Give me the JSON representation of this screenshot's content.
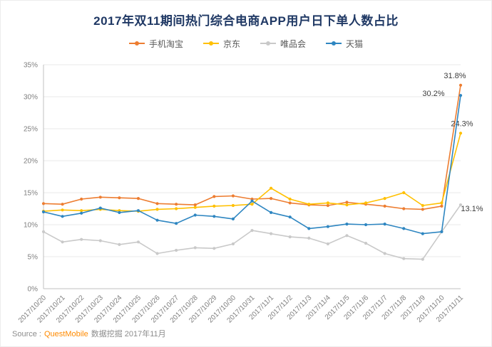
{
  "title": "2017年双11期间热门综合电商APP用户日下单人数占比",
  "source": {
    "prefix": "Source :",
    "brand": "QuestMobile",
    "suffix": "数据挖掘 2017年11月"
  },
  "colors": {
    "title": "#1F3864",
    "grid": "#E8E8E8",
    "axis": "#C0C0C0",
    "tick_text": "#7F7F7F",
    "end_label_text": "#3D3D3D",
    "source_brand": "#FF8A00"
  },
  "chart_data": {
    "type": "line",
    "title": "2017年双11期间热门综合电商APP用户日下单人数占比",
    "xlabel": "",
    "ylabel": "",
    "ylim": [
      0,
      35
    ],
    "yticks": [
      "0%",
      "5%",
      "10%",
      "15%",
      "20%",
      "25%",
      "30%",
      "35%"
    ],
    "grid": true,
    "legend_position": "top",
    "x": [
      "2017/10/20",
      "2017/10/21",
      "2017/10/22",
      "2017/10/23",
      "2017/10/24",
      "2017/10/25",
      "2017/10/26",
      "2017/10/27",
      "2017/10/28",
      "2017/10/29",
      "2017/10/30",
      "2017/10/31",
      "2017/11/1",
      "2017/11/2",
      "2017/11/3",
      "2017/11/4",
      "2017/11/5",
      "2017/11/6",
      "2017/11/7",
      "2017/11/8",
      "2017/11/9",
      "2017/11/10",
      "2017/11/11"
    ],
    "series": [
      {
        "id": "taobao",
        "name": "手机淘宝",
        "color": "#ED7D31",
        "end_label": "31.8%",
        "label_dx": -8,
        "label_dy": -10,
        "values": [
          13.3,
          13.2,
          14.0,
          14.3,
          14.2,
          14.1,
          13.3,
          13.2,
          13.1,
          14.4,
          14.5,
          14.0,
          14.1,
          13.4,
          13.1,
          13.0,
          13.5,
          13.2,
          12.9,
          12.5,
          12.4,
          12.9,
          31.8
        ]
      },
      {
        "id": "jd",
        "name": "京东",
        "color": "#FFC000",
        "end_label": "24.3%",
        "label_dx": 2,
        "label_dy": -10,
        "values": [
          12.1,
          12.3,
          12.2,
          12.4,
          12.2,
          12.1,
          12.4,
          12.5,
          12.7,
          12.9,
          13.0,
          13.2,
          15.7,
          14.0,
          13.2,
          13.4,
          13.1,
          13.4,
          14.1,
          15.0,
          13.0,
          13.4,
          24.3
        ]
      },
      {
        "id": "vip",
        "name": "唯品会",
        "color": "#C9C9C9",
        "end_label": "13.1%",
        "label_dx": 16,
        "label_dy": 9,
        "values": [
          8.9,
          7.3,
          7.7,
          7.5,
          6.9,
          7.3,
          5.5,
          6.0,
          6.4,
          6.3,
          7.0,
          9.1,
          8.6,
          8.1,
          7.9,
          7.0,
          8.3,
          7.1,
          5.5,
          4.7,
          4.6,
          8.9,
          13.1
        ]
      },
      {
        "id": "tmall",
        "name": "天猫",
        "color": "#2E86C1",
        "end_label": "30.2%",
        "label_dx": -38,
        "label_dy": 1,
        "values": [
          12.0,
          11.3,
          11.8,
          12.6,
          11.9,
          12.2,
          10.7,
          10.2,
          11.5,
          11.3,
          10.9,
          13.7,
          11.9,
          11.2,
          9.4,
          9.7,
          10.1,
          10.0,
          10.1,
          9.4,
          8.6,
          8.9,
          30.2
        ]
      }
    ]
  }
}
